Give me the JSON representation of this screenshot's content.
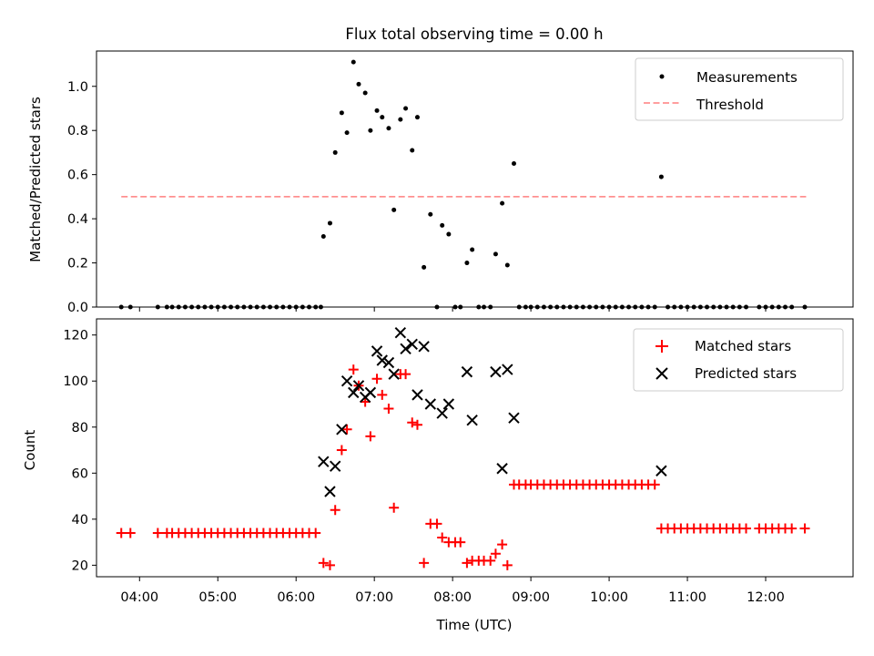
{
  "figure": {
    "title": "Flux total observing time = 0.00 h"
  },
  "colors": {
    "measurement": "#000000",
    "threshold": "#ff7f7f",
    "matched": "#ff0000",
    "predicted": "#000000"
  },
  "chart_data": [
    {
      "type": "scatter",
      "title": "Flux total observing time = 0.00 h",
      "xlabel": "",
      "ylabel": "Matched/Predicted stars",
      "xlim": [
        "03:27",
        "13:07"
      ],
      "ylim": [
        0,
        1.16
      ],
      "yticks": [
        "0.0",
        "0.2",
        "0.4",
        "0.6",
        "0.8",
        "1.0"
      ],
      "xtick_values": [
        "04:00",
        "05:00",
        "06:00",
        "07:00",
        "08:00",
        "09:00",
        "10:00",
        "11:00",
        "12:00"
      ],
      "grid": false,
      "legend_position": "upper right",
      "legend": [
        "Measurements",
        "Threshold"
      ],
      "threshold": {
        "name": "Threshold",
        "value": 0.5,
        "x": [
          "03:46",
          "12:31"
        ]
      },
      "series": [
        {
          "name": "Measurements",
          "points": [
            [
              "03:46",
              0
            ],
            [
              "03:53",
              0
            ],
            [
              "04:14",
              0
            ],
            [
              "04:21",
              0
            ],
            [
              "04:25",
              0
            ],
            [
              "04:30",
              0
            ],
            [
              "04:35",
              0
            ],
            [
              "04:40",
              0
            ],
            [
              "04:45",
              0
            ],
            [
              "04:50",
              0
            ],
            [
              "04:55",
              0
            ],
            [
              "05:00",
              0
            ],
            [
              "05:05",
              0
            ],
            [
              "05:10",
              0
            ],
            [
              "05:15",
              0
            ],
            [
              "05:20",
              0
            ],
            [
              "05:25",
              0
            ],
            [
              "05:30",
              0
            ],
            [
              "05:35",
              0
            ],
            [
              "05:40",
              0
            ],
            [
              "05:45",
              0
            ],
            [
              "05:50",
              0
            ],
            [
              "05:55",
              0
            ],
            [
              "06:00",
              0
            ],
            [
              "06:05",
              0
            ],
            [
              "06:10",
              0
            ],
            [
              "06:15",
              0
            ],
            [
              "06:19",
              0
            ],
            [
              "06:21",
              0.32
            ],
            [
              "06:26",
              0.38
            ],
            [
              "06:30",
              0.7
            ],
            [
              "06:35",
              0.88
            ],
            [
              "06:39",
              0.79
            ],
            [
              "06:44",
              1.11
            ],
            [
              "06:48",
              1.01
            ],
            [
              "06:53",
              0.97
            ],
            [
              "06:57",
              0.8
            ],
            [
              "07:02",
              0.89
            ],
            [
              "07:06",
              0.86
            ],
            [
              "07:11",
              0.81
            ],
            [
              "07:15",
              0.44
            ],
            [
              "07:20",
              0.85
            ],
            [
              "07:24",
              0.9
            ],
            [
              "07:29",
              0.71
            ],
            [
              "07:33",
              0.86
            ],
            [
              "07:38",
              0.18
            ],
            [
              "07:43",
              0.42
            ],
            [
              "07:48",
              0
            ],
            [
              "07:52",
              0.37
            ],
            [
              "07:57",
              0.33
            ],
            [
              "08:02",
              0
            ],
            [
              "08:06",
              0
            ],
            [
              "08:11",
              0.2
            ],
            [
              "08:15",
              0.26
            ],
            [
              "08:20",
              0
            ],
            [
              "08:24",
              0
            ],
            [
              "08:29",
              0
            ],
            [
              "08:33",
              0.24
            ],
            [
              "08:38",
              0.47
            ],
            [
              "08:42",
              0.19
            ],
            [
              "08:47",
              0.65
            ],
            [
              "08:51",
              0
            ],
            [
              "08:56",
              0
            ],
            [
              "09:00",
              0
            ],
            [
              "09:05",
              0
            ],
            [
              "09:10",
              0
            ],
            [
              "09:15",
              0
            ],
            [
              "09:20",
              0
            ],
            [
              "09:25",
              0
            ],
            [
              "09:30",
              0
            ],
            [
              "09:35",
              0
            ],
            [
              "09:40",
              0
            ],
            [
              "09:45",
              0
            ],
            [
              "09:50",
              0
            ],
            [
              "09:55",
              0
            ],
            [
              "10:00",
              0
            ],
            [
              "10:05",
              0
            ],
            [
              "10:10",
              0
            ],
            [
              "10:15",
              0
            ],
            [
              "10:20",
              0
            ],
            [
              "10:25",
              0
            ],
            [
              "10:30",
              0
            ],
            [
              "10:35",
              0
            ],
            [
              "10:40",
              0.59
            ],
            [
              "10:45",
              0
            ],
            [
              "10:50",
              0
            ],
            [
              "10:55",
              0
            ],
            [
              "11:00",
              0
            ],
            [
              "11:05",
              0
            ],
            [
              "11:10",
              0
            ],
            [
              "11:15",
              0
            ],
            [
              "11:20",
              0
            ],
            [
              "11:25",
              0
            ],
            [
              "11:30",
              0
            ],
            [
              "11:35",
              0
            ],
            [
              "11:40",
              0
            ],
            [
              "11:45",
              0
            ],
            [
              "11:55",
              0
            ],
            [
              "12:00",
              0
            ],
            [
              "12:05",
              0
            ],
            [
              "12:10",
              0
            ],
            [
              "12:15",
              0
            ],
            [
              "12:20",
              0
            ],
            [
              "12:30",
              0
            ]
          ]
        }
      ]
    },
    {
      "type": "scatter",
      "xlabel": "Time (UTC)",
      "ylabel": "Count",
      "xlim": [
        "03:27",
        "13:07"
      ],
      "ylim": [
        15,
        127
      ],
      "yticks": [
        "20",
        "40",
        "60",
        "80",
        "100",
        "120"
      ],
      "xticks": [
        "04:00",
        "05:00",
        "06:00",
        "07:00",
        "08:00",
        "09:00",
        "10:00",
        "11:00",
        "12:00"
      ],
      "grid": false,
      "legend_position": "upper right",
      "legend": [
        "Matched stars",
        "Predicted stars"
      ],
      "series": [
        {
          "name": "Matched stars",
          "points": [
            [
              "03:46",
              34
            ],
            [
              "03:53",
              34
            ],
            [
              "04:14",
              34
            ],
            [
              "04:21",
              34
            ],
            [
              "04:25",
              34
            ],
            [
              "04:30",
              34
            ],
            [
              "04:35",
              34
            ],
            [
              "04:40",
              34
            ],
            [
              "04:45",
              34
            ],
            [
              "04:50",
              34
            ],
            [
              "04:55",
              34
            ],
            [
              "05:00",
              34
            ],
            [
              "05:05",
              34
            ],
            [
              "05:10",
              34
            ],
            [
              "05:15",
              34
            ],
            [
              "05:20",
              34
            ],
            [
              "05:25",
              34
            ],
            [
              "05:30",
              34
            ],
            [
              "05:35",
              34
            ],
            [
              "05:40",
              34
            ],
            [
              "05:45",
              34
            ],
            [
              "05:50",
              34
            ],
            [
              "05:55",
              34
            ],
            [
              "06:00",
              34
            ],
            [
              "06:05",
              34
            ],
            [
              "06:10",
              34
            ],
            [
              "06:15",
              34
            ],
            [
              "06:21",
              21
            ],
            [
              "06:26",
              20
            ],
            [
              "06:30",
              44
            ],
            [
              "06:35",
              70
            ],
            [
              "06:39",
              79
            ],
            [
              "06:44",
              105
            ],
            [
              "06:48",
              98
            ],
            [
              "06:53",
              91
            ],
            [
              "06:57",
              76
            ],
            [
              "07:02",
              101
            ],
            [
              "07:06",
              94
            ],
            [
              "07:11",
              88
            ],
            [
              "07:15",
              45
            ],
            [
              "07:20",
              103
            ],
            [
              "07:24",
              103
            ],
            [
              "07:29",
              82
            ],
            [
              "07:33",
              81
            ],
            [
              "07:38",
              21
            ],
            [
              "07:43",
              38
            ],
            [
              "07:48",
              38
            ],
            [
              "07:52",
              32
            ],
            [
              "07:57",
              30
            ],
            [
              "08:02",
              30
            ],
            [
              "08:06",
              30
            ],
            [
              "08:11",
              21
            ],
            [
              "08:15",
              22
            ],
            [
              "08:20",
              22
            ],
            [
              "08:24",
              22
            ],
            [
              "08:29",
              22
            ],
            [
              "08:33",
              25
            ],
            [
              "08:38",
              29
            ],
            [
              "08:42",
              20
            ],
            [
              "08:47",
              55
            ],
            [
              "08:51",
              55
            ],
            [
              "08:56",
              55
            ],
            [
              "09:00",
              55
            ],
            [
              "09:05",
              55
            ],
            [
              "09:10",
              55
            ],
            [
              "09:15",
              55
            ],
            [
              "09:20",
              55
            ],
            [
              "09:25",
              55
            ],
            [
              "09:30",
              55
            ],
            [
              "09:35",
              55
            ],
            [
              "09:40",
              55
            ],
            [
              "09:45",
              55
            ],
            [
              "09:50",
              55
            ],
            [
              "09:55",
              55
            ],
            [
              "10:00",
              55
            ],
            [
              "10:05",
              55
            ],
            [
              "10:10",
              55
            ],
            [
              "10:15",
              55
            ],
            [
              "10:20",
              55
            ],
            [
              "10:25",
              55
            ],
            [
              "10:30",
              55
            ],
            [
              "10:35",
              55
            ],
            [
              "10:40",
              36
            ],
            [
              "10:45",
              36
            ],
            [
              "10:50",
              36
            ],
            [
              "10:55",
              36
            ],
            [
              "11:00",
              36
            ],
            [
              "11:05",
              36
            ],
            [
              "11:10",
              36
            ],
            [
              "11:15",
              36
            ],
            [
              "11:20",
              36
            ],
            [
              "11:25",
              36
            ],
            [
              "11:30",
              36
            ],
            [
              "11:35",
              36
            ],
            [
              "11:40",
              36
            ],
            [
              "11:45",
              36
            ],
            [
              "11:55",
              36
            ],
            [
              "12:00",
              36
            ],
            [
              "12:05",
              36
            ],
            [
              "12:10",
              36
            ],
            [
              "12:15",
              36
            ],
            [
              "12:20",
              36
            ],
            [
              "12:30",
              36
            ]
          ]
        },
        {
          "name": "Predicted stars",
          "points": [
            [
              "06:21",
              65
            ],
            [
              "06:26",
              52
            ],
            [
              "06:30",
              63
            ],
            [
              "06:35",
              79
            ],
            [
              "06:39",
              100
            ],
            [
              "06:44",
              95
            ],
            [
              "06:48",
              98
            ],
            [
              "06:53",
              93
            ],
            [
              "06:57",
              95
            ],
            [
              "07:02",
              113
            ],
            [
              "07:06",
              109
            ],
            [
              "07:11",
              108
            ],
            [
              "07:15",
              103
            ],
            [
              "07:20",
              121
            ],
            [
              "07:24",
              114
            ],
            [
              "07:29",
              116
            ],
            [
              "07:33",
              94
            ],
            [
              "07:38",
              115
            ],
            [
              "07:43",
              90
            ],
            [
              "07:52",
              86
            ],
            [
              "07:57",
              90
            ],
            [
              "08:11",
              104
            ],
            [
              "08:15",
              83
            ],
            [
              "08:33",
              104
            ],
            [
              "08:38",
              62
            ],
            [
              "08:42",
              105
            ],
            [
              "08:47",
              84
            ],
            [
              "10:40",
              61
            ]
          ]
        }
      ]
    }
  ]
}
